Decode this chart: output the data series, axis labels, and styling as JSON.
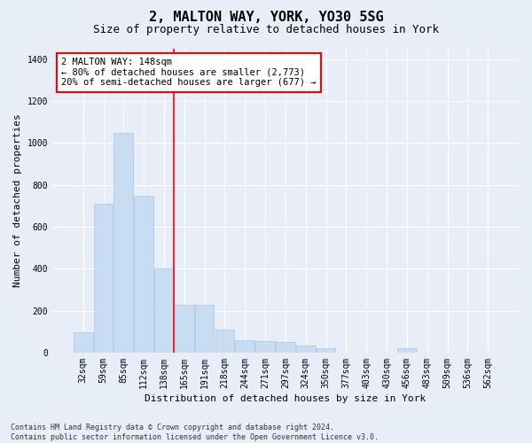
{
  "title1": "2, MALTON WAY, YORK, YO30 5SG",
  "title2": "Size of property relative to detached houses in York",
  "xlabel": "Distribution of detached houses by size in York",
  "ylabel": "Number of detached properties",
  "categories": [
    "32sqm",
    "59sqm",
    "85sqm",
    "112sqm",
    "138sqm",
    "165sqm",
    "191sqm",
    "218sqm",
    "244sqm",
    "271sqm",
    "297sqm",
    "324sqm",
    "350sqm",
    "377sqm",
    "403sqm",
    "430sqm",
    "456sqm",
    "483sqm",
    "509sqm",
    "536sqm",
    "562sqm"
  ],
  "values": [
    95,
    710,
    1050,
    750,
    400,
    230,
    230,
    110,
    60,
    55,
    50,
    35,
    20,
    0,
    0,
    0,
    20,
    0,
    0,
    0,
    0
  ],
  "bar_color": "#c9ddf2",
  "bar_edge_color": "#aac4e0",
  "red_line_x": 4.5,
  "annotation_text": "2 MALTON WAY: 148sqm\n← 80% of detached houses are smaller (2,773)\n20% of semi-detached houses are larger (677) →",
  "annotation_box_color": "white",
  "annotation_box_edge": "red",
  "ylim": [
    0,
    1450
  ],
  "yticks": [
    0,
    200,
    400,
    600,
    800,
    1000,
    1200,
    1400
  ],
  "footnote": "Contains HM Land Registry data © Crown copyright and database right 2024.\nContains public sector information licensed under the Open Government Licence v3.0.",
  "bg_color": "#e8eef8",
  "plot_bg_color": "#e8eef8",
  "grid_color": "white",
  "title1_fontsize": 11,
  "title2_fontsize": 9,
  "annotation_fontsize": 7.5,
  "ylabel_fontsize": 8,
  "xlabel_fontsize": 8,
  "tick_fontsize": 7
}
